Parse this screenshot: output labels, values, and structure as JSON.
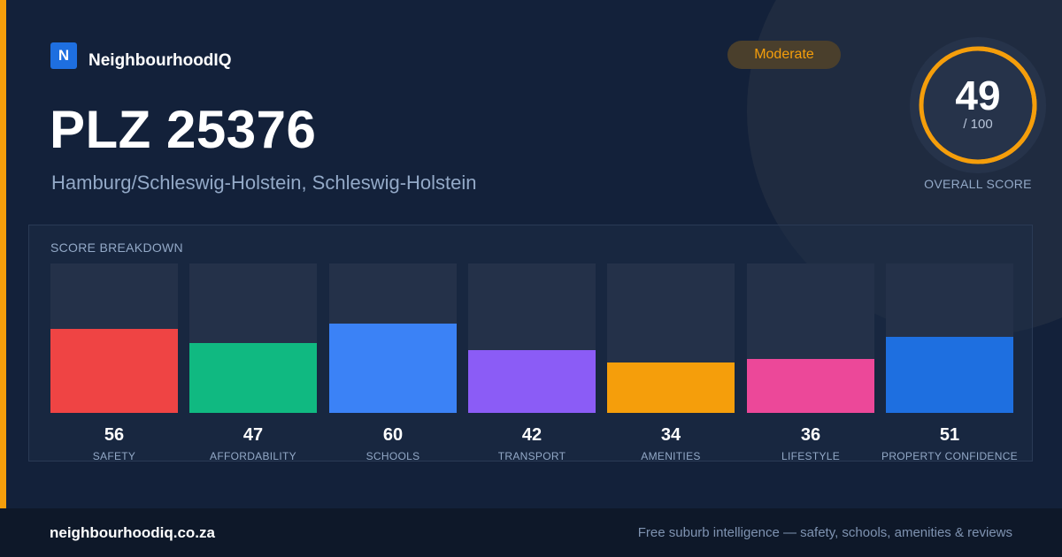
{
  "brand": {
    "logo_letter": "N",
    "name": "NeighbourhoodIQ",
    "color": "#1e6fe0"
  },
  "header": {
    "title": "PLZ 25376",
    "subtitle": "Hamburg/Schleswig-Holstein, Schleswig-Holstein",
    "badge": "Moderate",
    "badge_color": "#f59e0b"
  },
  "overall_score": {
    "value": 49,
    "max_label": "/ 100",
    "max": 100,
    "caption": "OVERALL SCORE",
    "ring_color": "#f59e0b"
  },
  "breakdown": {
    "title": "SCORE BREAKDOWN",
    "max": 100
  },
  "chart_data": {
    "type": "bar",
    "title": "SCORE BREAKDOWN",
    "categories": [
      "SAFETY",
      "AFFORDABILITY",
      "SCHOOLS",
      "TRANSPORT",
      "AMENITIES",
      "LIFESTYLE",
      "PROPERTY CONFIDENCE"
    ],
    "values": [
      56,
      47,
      60,
      42,
      34,
      36,
      51
    ],
    "colors": [
      "#ef4444",
      "#10b981",
      "#3b82f6",
      "#8b5cf6",
      "#f59e0b",
      "#ec4899",
      "#1e6fe0"
    ],
    "ylim": [
      0,
      100
    ],
    "grid": false
  },
  "footer": {
    "domain": "neighbourhoodiq.co.za",
    "tagline": "Free suburb intelligence — safety, schools, amenities & reviews"
  }
}
